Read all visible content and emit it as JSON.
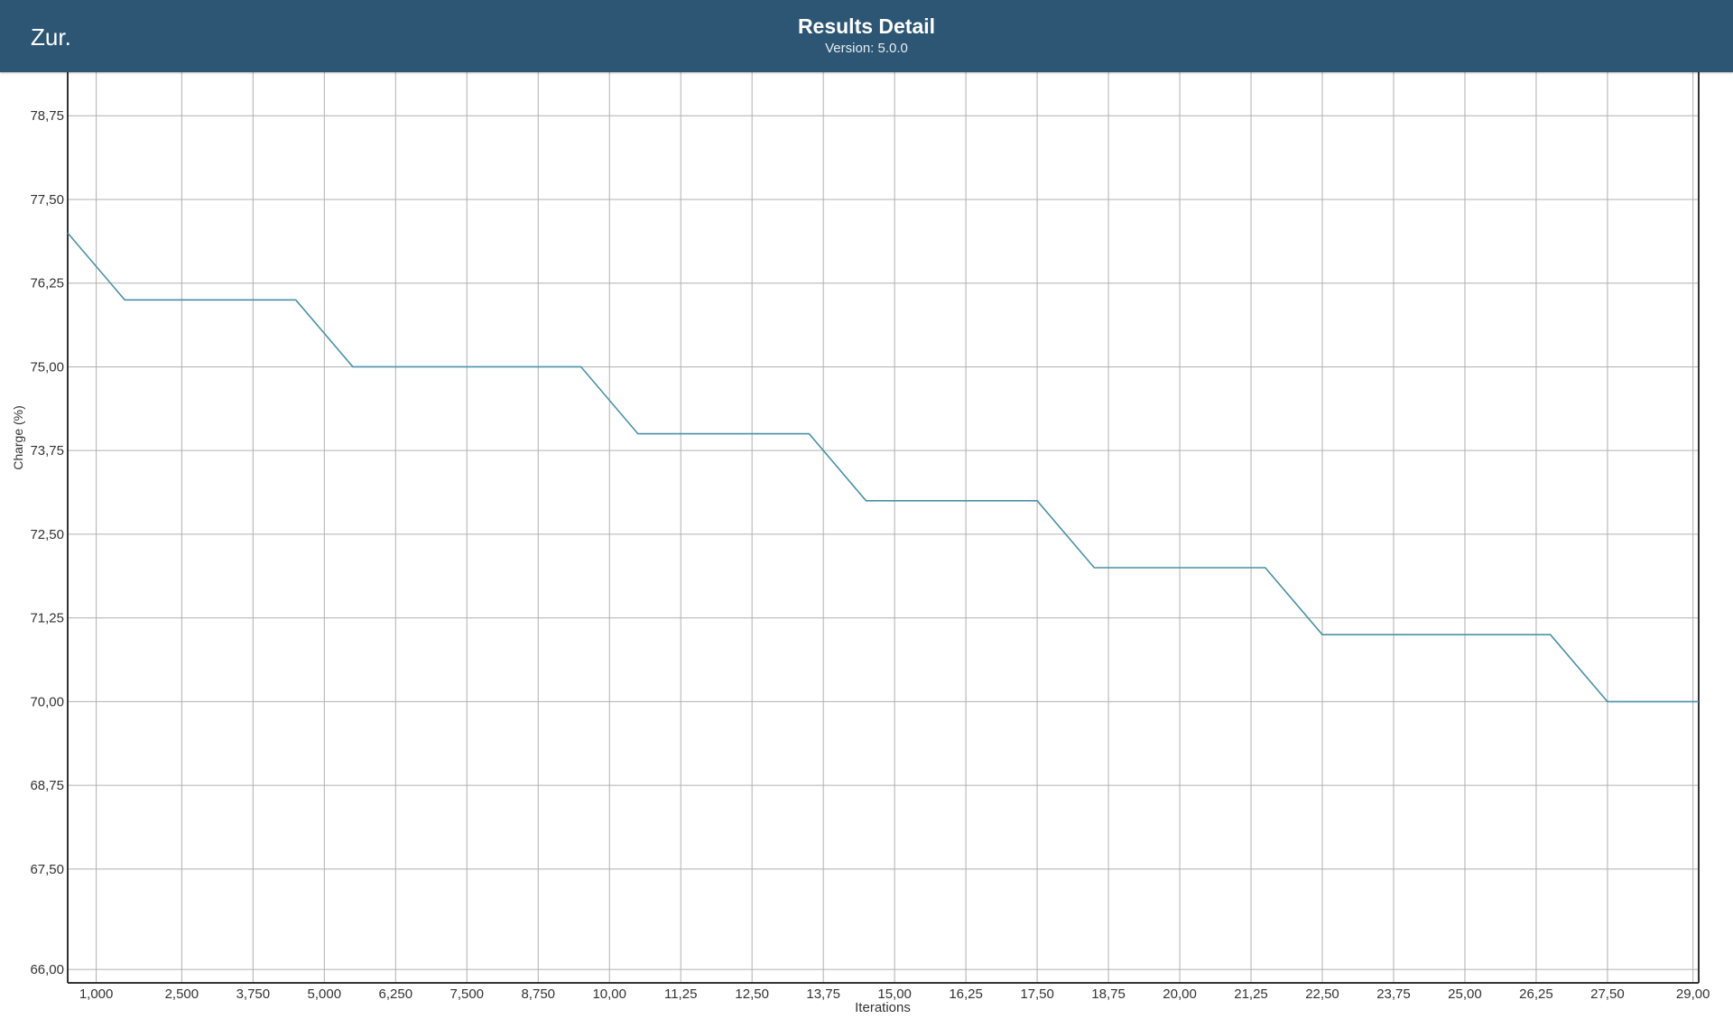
{
  "header": {
    "back_label": "Zur.",
    "title": "Results Detail",
    "version": "Version: 5.0.0"
  },
  "colors": {
    "header_background": "#2d5674",
    "line": "#4a90a8",
    "grid": "#b0b0b0",
    "axis": "#333333"
  },
  "chart_data": {
    "type": "line",
    "xlabel": "Iterations",
    "ylabel": "Charge (%)",
    "xlim": [
      500,
      29100
    ],
    "ylim": [
      65.8,
      79.4
    ],
    "grid": true,
    "x_ticks": [
      1000,
      2500,
      3750,
      5000,
      6250,
      7500,
      8750,
      10000,
      11250,
      12500,
      13750,
      15000,
      16250,
      17500,
      18750,
      20000,
      21250,
      22500,
      23750,
      25000,
      26250,
      27500,
      29000
    ],
    "x_tick_labels": [
      "1,000",
      "2,500",
      "3,750",
      "5,000",
      "6,250",
      "7,500",
      "8,750",
      "10,00",
      "11,25",
      "12,50",
      "13,75",
      "15,00",
      "16,25",
      "17,50",
      "18,75",
      "20,00",
      "21,25",
      "22,50",
      "23,75",
      "25,00",
      "26,25",
      "27,50",
      "29,00"
    ],
    "y_ticks": [
      66,
      67.5,
      68.75,
      70,
      71.25,
      72.5,
      73.75,
      75,
      76.25,
      77.5,
      78.75
    ],
    "y_tick_labels": [
      "66,00",
      "67,50",
      "68,75",
      "70,00",
      "71,25",
      "72,50",
      "73,75",
      "75,00",
      "76,25",
      "77,50",
      "78,75"
    ],
    "series": [
      {
        "x": [
          500,
          1500,
          4500,
          5500,
          9500,
          10500,
          13500,
          14500,
          17500,
          18500,
          21500,
          22500,
          26500,
          27500,
          29100
        ],
        "y": [
          77,
          76,
          76,
          75,
          75,
          74,
          74,
          73,
          73,
          72,
          72,
          71,
          71,
          70,
          70
        ]
      }
    ]
  }
}
